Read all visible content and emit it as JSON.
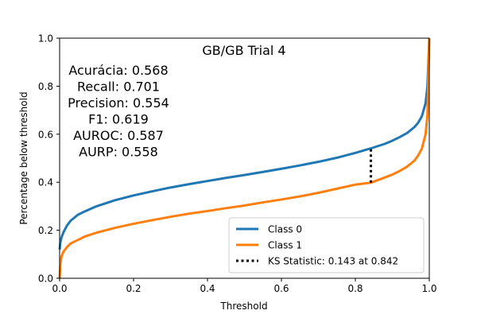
{
  "chart_data": {
    "type": "line",
    "title": "GB/GB Trial 4",
    "xlabel": "Threshold",
    "ylabel": "Percentage below threshold",
    "xlim": [
      0.0,
      1.0
    ],
    "ylim": [
      0.0,
      1.0
    ],
    "x_ticks": [
      "0.0",
      "0.2",
      "0.4",
      "0.6",
      "0.8",
      "1.0"
    ],
    "y_ticks": [
      "0.0",
      "0.2",
      "0.4",
      "0.6",
      "0.8",
      "1.0"
    ],
    "grid": false,
    "legend_position": "lower right",
    "metrics": [
      "Acurácia: 0.568",
      "Recall: 0.701",
      "Precision: 0.554",
      "F1: 0.619",
      "AUROC: 0.587",
      "AURP: 0.558"
    ],
    "series": [
      {
        "name": "Class 0",
        "color": "#1f77b4",
        "x": [
          0.0,
          0.002,
          0.005,
          0.01,
          0.02,
          0.03,
          0.05,
          0.07,
          0.1,
          0.15,
          0.2,
          0.25,
          0.3,
          0.35,
          0.4,
          0.45,
          0.5,
          0.55,
          0.6,
          0.65,
          0.7,
          0.75,
          0.8,
          0.842,
          0.88,
          0.9,
          0.92,
          0.94,
          0.96,
          0.97,
          0.98,
          0.99,
          0.995,
          1.0
        ],
        "y": [
          0.12,
          0.15,
          0.17,
          0.19,
          0.22,
          0.24,
          0.265,
          0.28,
          0.3,
          0.325,
          0.345,
          0.362,
          0.378,
          0.392,
          0.405,
          0.418,
          0.43,
          0.443,
          0.456,
          0.47,
          0.485,
          0.502,
          0.522,
          0.541,
          0.56,
          0.573,
          0.588,
          0.605,
          0.63,
          0.648,
          0.675,
          0.73,
          0.8,
          1.0
        ]
      },
      {
        "name": "Class 1",
        "color": "#ff7f0e",
        "x": [
          0.0,
          0.002,
          0.005,
          0.01,
          0.02,
          0.03,
          0.05,
          0.07,
          0.1,
          0.15,
          0.2,
          0.25,
          0.3,
          0.35,
          0.4,
          0.45,
          0.5,
          0.55,
          0.6,
          0.65,
          0.7,
          0.75,
          0.8,
          0.842,
          0.88,
          0.9,
          0.92,
          0.94,
          0.96,
          0.97,
          0.98,
          0.99,
          0.995,
          1.0
        ],
        "y": [
          0.0,
          0.06,
          0.09,
          0.11,
          0.13,
          0.145,
          0.16,
          0.175,
          0.19,
          0.21,
          0.227,
          0.242,
          0.256,
          0.269,
          0.28,
          0.292,
          0.303,
          0.316,
          0.328,
          0.341,
          0.356,
          0.373,
          0.39,
          0.398,
          0.42,
          0.432,
          0.447,
          0.465,
          0.49,
          0.512,
          0.54,
          0.6,
          0.68,
          1.0
        ]
      }
    ],
    "ks": {
      "label": "KS Statistic: 0.143 at 0.842",
      "x": 0.842,
      "y_low": 0.398,
      "y_high": 0.541,
      "color": "#000000"
    }
  }
}
